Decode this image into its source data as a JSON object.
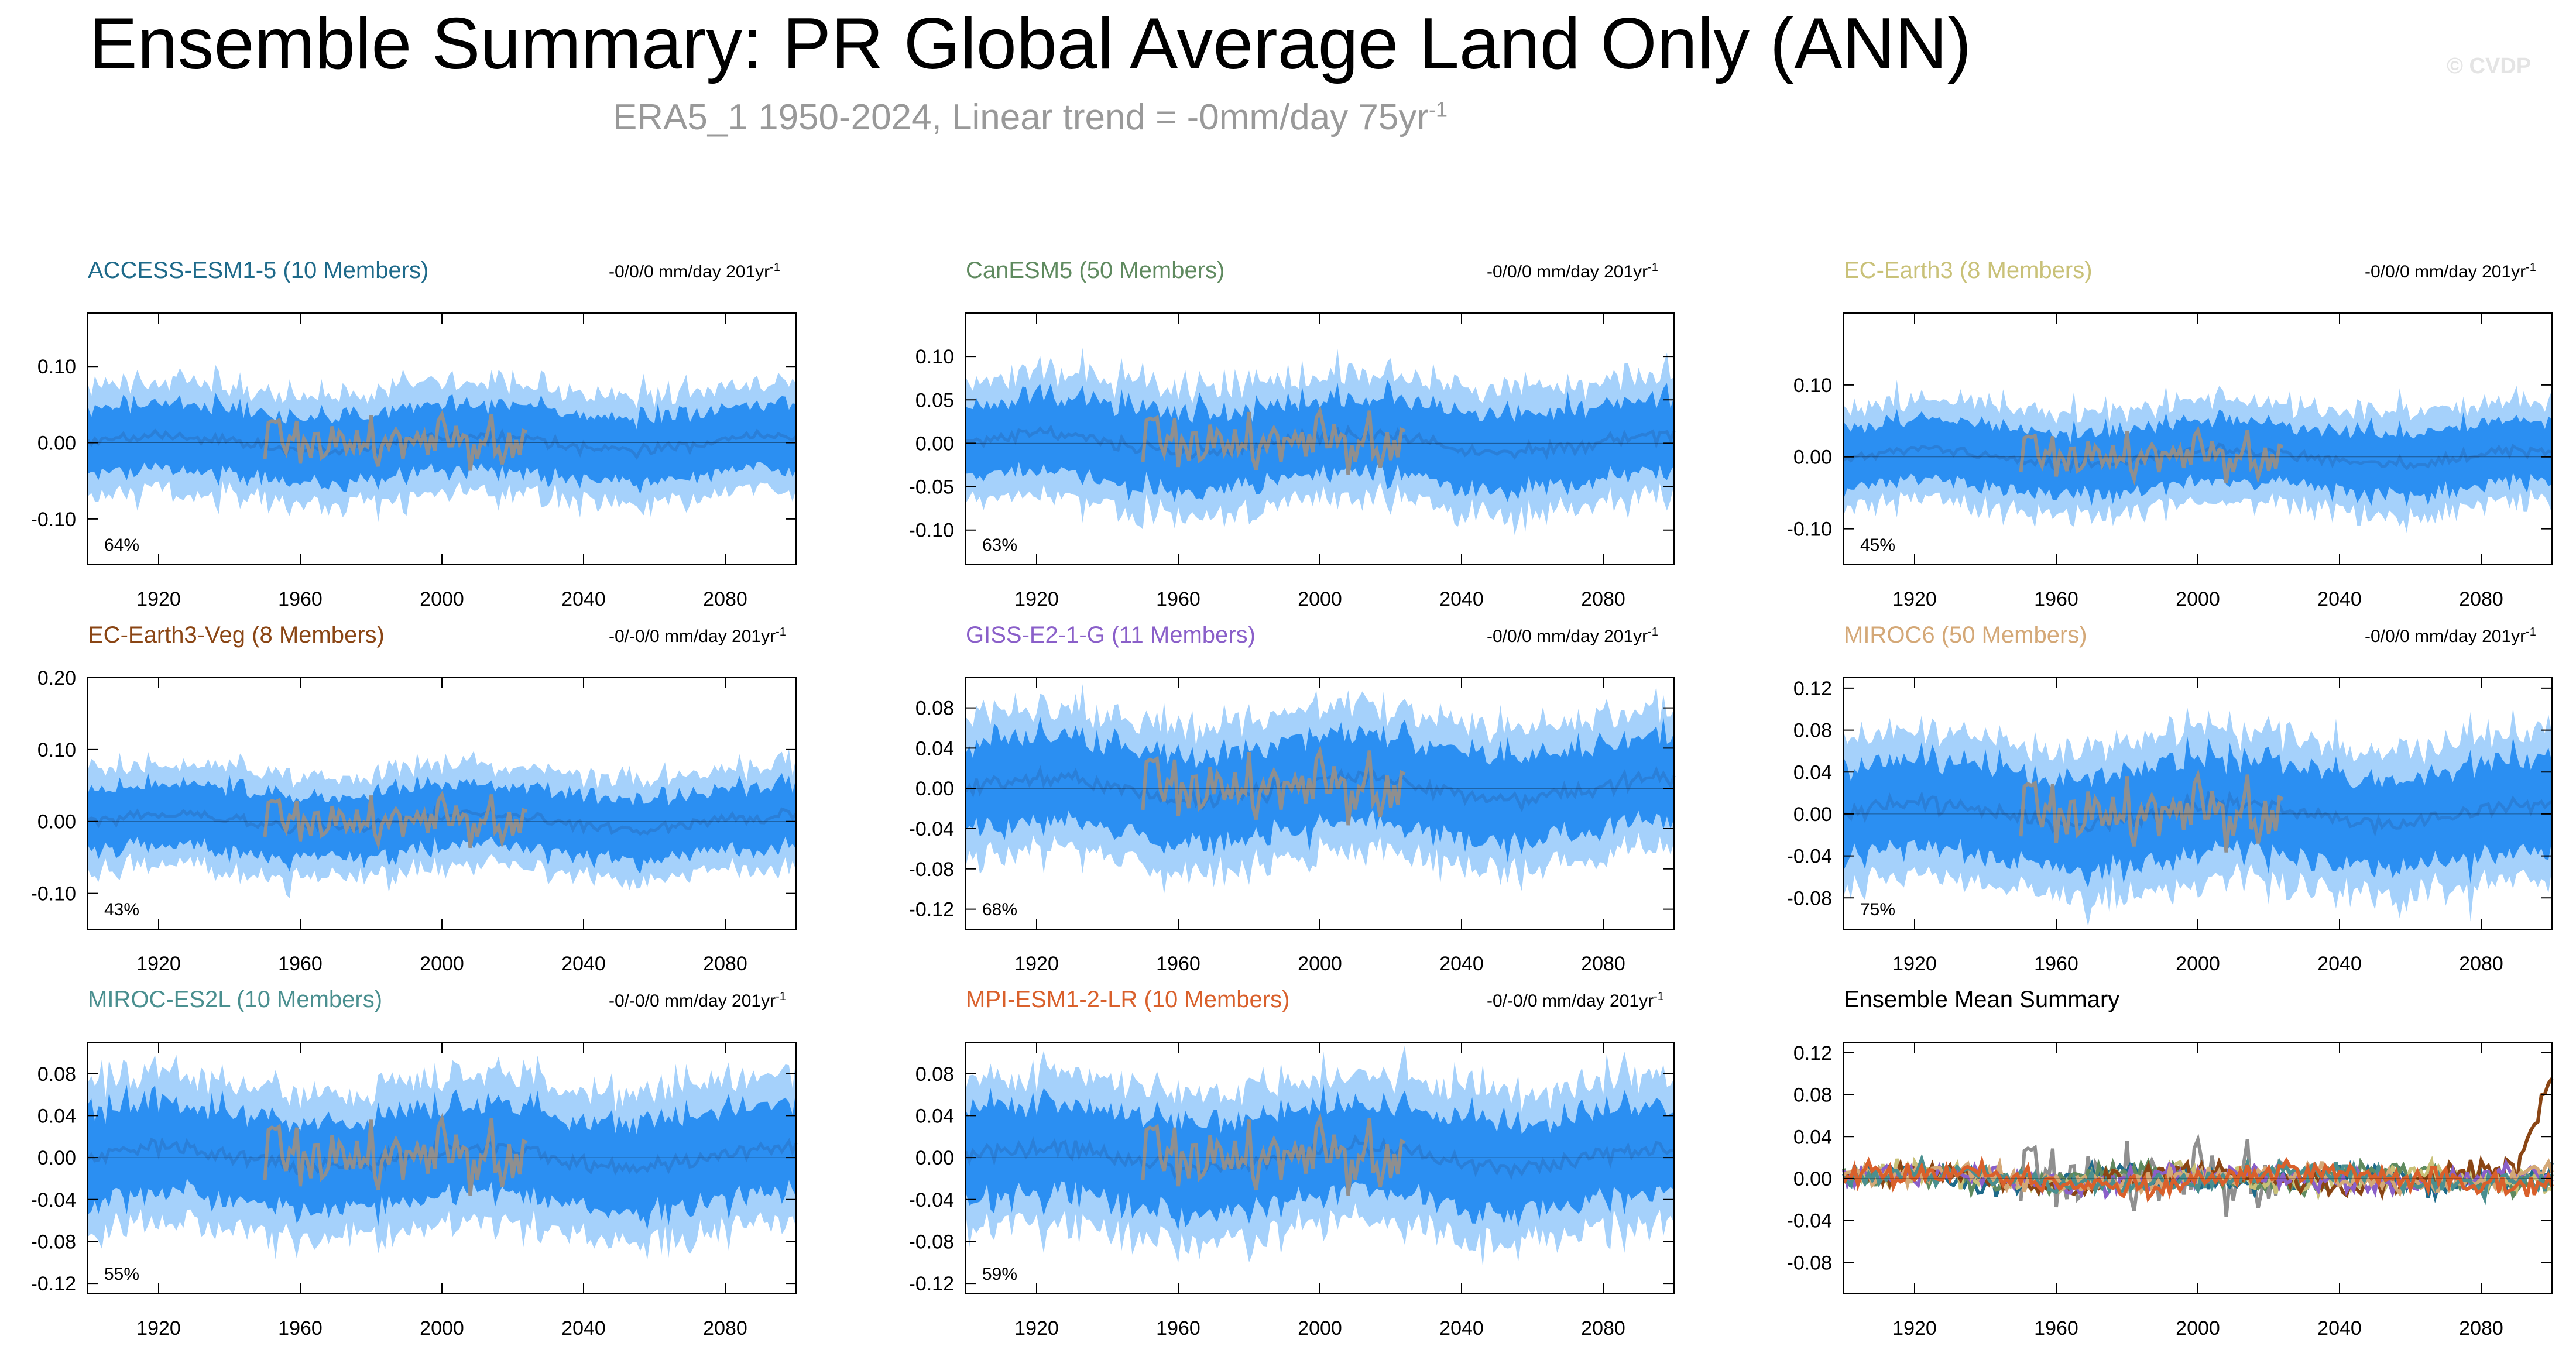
{
  "title": "Ensemble Summary: PR Global Average Land Only (ANN)",
  "subtitle": "ERA5_1 1950-2024, Linear trend = -0mm/day 75yr",
  "subtitle_sup": "-1",
  "credit": "© CVDP",
  "colors": {
    "inner_band": "#2b8ff2",
    "outer_band": "#a5d1fb",
    "mean_line": "#2a7fd8",
    "obs_line": "#8f8f8f",
    "axis": "#000000"
  },
  "chart_data": [
    {
      "type": "area",
      "title": "ACCESS-ESM1-5 (10 Members)",
      "title_color": "#1e6a8a",
      "trend": "-0/0/0 mm/day 201yr",
      "trend_sup": "-1",
      "pct": "64%",
      "xlim": [
        1900,
        2100
      ],
      "ylim": [
        -0.16,
        0.17
      ],
      "yticks": [
        -0.1,
        0.0,
        0.1
      ],
      "ytick_labels": [
        "-0.10",
        "0.00",
        "0.10"
      ],
      "xticks": [
        1920,
        1960,
        2000,
        2040,
        2080
      ],
      "ylabel": "",
      "xlabel": ""
    },
    {
      "type": "area",
      "title": "CanESM5 (50 Members)",
      "title_color": "#5f8a5f",
      "trend": "-0/0/0 mm/day 201yr",
      "trend_sup": "-1",
      "pct": "63%",
      "xlim": [
        1900,
        2100
      ],
      "ylim": [
        -0.14,
        0.15
      ],
      "yticks": [
        -0.1,
        -0.05,
        0.0,
        0.05,
        0.1
      ],
      "ytick_labels": [
        "-0.10",
        "-0.05",
        "0.00",
        "0.05",
        "0.10"
      ],
      "xticks": [
        1920,
        1960,
        2000,
        2040,
        2080
      ],
      "ylabel": "",
      "xlabel": ""
    },
    {
      "type": "area",
      "title": "EC-Earth3 (8 Members)",
      "title_color": "#c9c178",
      "trend": "-0/0/0 mm/day 201yr",
      "trend_sup": "-1",
      "pct": "45%",
      "xlim": [
        1900,
        2100
      ],
      "ylim": [
        -0.15,
        0.2
      ],
      "yticks": [
        -0.1,
        0.0,
        0.1
      ],
      "ytick_labels": [
        "-0.10",
        "0.00",
        "0.10"
      ],
      "xticks": [
        1920,
        1960,
        2000,
        2040,
        2080
      ],
      "ylabel": "",
      "xlabel": ""
    },
    {
      "type": "area",
      "title": "EC-Earth3-Veg (8 Members)",
      "title_color": "#8a4514",
      "trend": "-0/-0/0 mm/day 201yr",
      "trend_sup": "-1",
      "pct": "43%",
      "xlim": [
        1900,
        2100
      ],
      "ylim": [
        -0.15,
        0.2
      ],
      "yticks": [
        -0.1,
        0.0,
        0.1,
        0.2
      ],
      "ytick_labels": [
        "-0.10",
        "0.00",
        "0.10",
        "0.20"
      ],
      "xticks": [
        1920,
        1960,
        2000,
        2040,
        2080
      ],
      "ylabel": "",
      "xlabel": ""
    },
    {
      "type": "area",
      "title": "GISS-E2-1-G (11 Members)",
      "title_color": "#8a5fc9",
      "trend": "-0/0/0 mm/day 201yr",
      "trend_sup": "-1",
      "pct": "68%",
      "xlim": [
        1900,
        2100
      ],
      "ylim": [
        -0.14,
        0.11
      ],
      "yticks": [
        -0.12,
        -0.08,
        -0.04,
        0.0,
        0.04,
        0.08
      ],
      "ytick_labels": [
        "-0.12",
        "-0.08",
        "-0.04",
        "0.00",
        "0.04",
        "0.08"
      ],
      "xticks": [
        1920,
        1960,
        2000,
        2040,
        2080
      ],
      "ylabel": "",
      "xlabel": ""
    },
    {
      "type": "area",
      "title": "MIROC6 (50 Members)",
      "title_color": "#d4a877",
      "trend": "-0/0/0 mm/day 201yr",
      "trend_sup": "-1",
      "pct": "75%",
      "xlim": [
        1900,
        2100
      ],
      "ylim": [
        -0.11,
        0.13
      ],
      "yticks": [
        -0.08,
        -0.04,
        0.0,
        0.04,
        0.08,
        0.12
      ],
      "ytick_labels": [
        "-0.08",
        "-0.04",
        "0.00",
        "0.04",
        "0.08",
        "0.12"
      ],
      "xticks": [
        1920,
        1960,
        2000,
        2040,
        2080
      ],
      "ylabel": "",
      "xlabel": ""
    },
    {
      "type": "area",
      "title": "MIROC-ES2L (10 Members)",
      "title_color": "#4a8f8f",
      "trend": "-0/-0/0 mm/day 201yr",
      "trend_sup": "-1",
      "pct": "55%",
      "xlim": [
        1900,
        2100
      ],
      "ylim": [
        -0.13,
        0.11
      ],
      "yticks": [
        -0.12,
        -0.08,
        -0.04,
        0.0,
        0.04,
        0.08
      ],
      "ytick_labels": [
        "-0.12",
        "-0.08",
        "-0.04",
        "0.00",
        "0.04",
        "0.08"
      ],
      "xticks": [
        1920,
        1960,
        2000,
        2040,
        2080
      ],
      "ylabel": "",
      "xlabel": ""
    },
    {
      "type": "area",
      "title": "MPI-ESM1-2-LR (10 Members)",
      "title_color": "#d9602b",
      "trend": "-0/-0/0 mm/day 201yr",
      "trend_sup": "-1",
      "pct": "59%",
      "xlim": [
        1900,
        2100
      ],
      "ylim": [
        -0.13,
        0.11
      ],
      "yticks": [
        -0.12,
        -0.08,
        -0.04,
        0.0,
        0.04,
        0.08
      ],
      "ytick_labels": [
        "-0.12",
        "-0.08",
        "-0.04",
        "0.00",
        "0.04",
        "0.08"
      ],
      "xticks": [
        1920,
        1960,
        2000,
        2040,
        2080
      ],
      "ylabel": "",
      "xlabel": ""
    },
    {
      "type": "line",
      "title": "Ensemble Mean Summary",
      "title_color": "#000000",
      "trend": "",
      "trend_sup": "",
      "pct": "",
      "xlim": [
        1900,
        2100
      ],
      "ylim": [
        -0.11,
        0.13
      ],
      "yticks": [
        -0.08,
        -0.04,
        0.0,
        0.04,
        0.08,
        0.12
      ],
      "ytick_labels": [
        "-0.08",
        "-0.04",
        "0.00",
        "0.04",
        "0.08",
        "0.12"
      ],
      "xticks": [
        1920,
        1960,
        2000,
        2040,
        2080
      ],
      "ylabel": "",
      "xlabel": "",
      "series": [
        {
          "name": "ERA5_1",
          "color": "#8f8f8f"
        },
        {
          "name": "ACCESS-ESM1-5",
          "color": "#1e6a8a"
        },
        {
          "name": "CanESM5",
          "color": "#5f8a5f"
        },
        {
          "name": "EC-Earth3",
          "color": "#c9c178"
        },
        {
          "name": "EC-Earth3-Veg",
          "color": "#8a4514"
        },
        {
          "name": "GISS-E2-1-G",
          "color": "#8a5fc9"
        },
        {
          "name": "MIROC6",
          "color": "#d4a877"
        },
        {
          "name": "MIROC-ES2L",
          "color": "#4a8f8f"
        },
        {
          "name": "MPI-ESM1-2-LR",
          "color": "#d9602b"
        }
      ]
    }
  ]
}
